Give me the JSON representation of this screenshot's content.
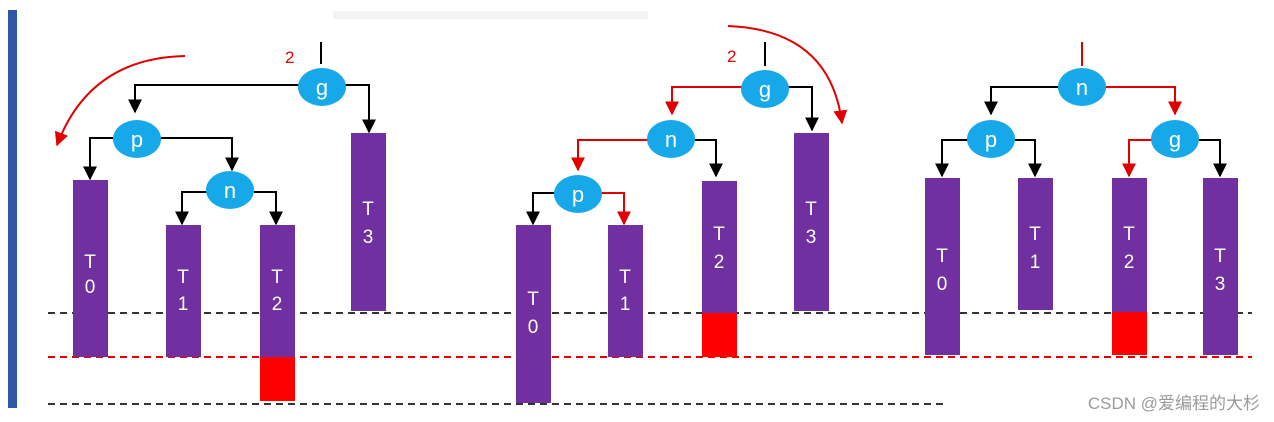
{
  "diagram": {
    "panels": [
      {
        "balance_mark": "2",
        "nodes": {
          "g": "g",
          "p": "p",
          "n": "n"
        },
        "subtrees": [
          {
            "label": [
              "T",
              "0"
            ]
          },
          {
            "label": [
              "T",
              "1"
            ]
          },
          {
            "label": [
              "T",
              "2"
            ]
          },
          {
            "label": [
              "T",
              "3"
            ]
          }
        ]
      },
      {
        "balance_mark": "2",
        "nodes": {
          "g": "g",
          "n": "n",
          "p": "p"
        },
        "subtrees": [
          {
            "label": [
              "T",
              "0"
            ]
          },
          {
            "label": [
              "T",
              "1"
            ]
          },
          {
            "label": [
              "T",
              "2"
            ]
          },
          {
            "label": [
              "T",
              "3"
            ]
          }
        ]
      },
      {
        "nodes": {
          "n": "n",
          "p": "p",
          "g": "g"
        },
        "subtrees": [
          {
            "label": [
              "T",
              "0"
            ]
          },
          {
            "label": [
              "T",
              "1"
            ]
          },
          {
            "label": [
              "T",
              "2"
            ]
          },
          {
            "label": [
              "T",
              "3"
            ]
          }
        ]
      }
    ],
    "colors": {
      "node": "#16a8e8",
      "subtree": "#7030a0",
      "inserted": "#ff0000",
      "edge": "#000000",
      "rotated_edge": "#e00000",
      "accent": "#2f57a5"
    }
  },
  "watermark": "CSDN @爱编程的大杉"
}
